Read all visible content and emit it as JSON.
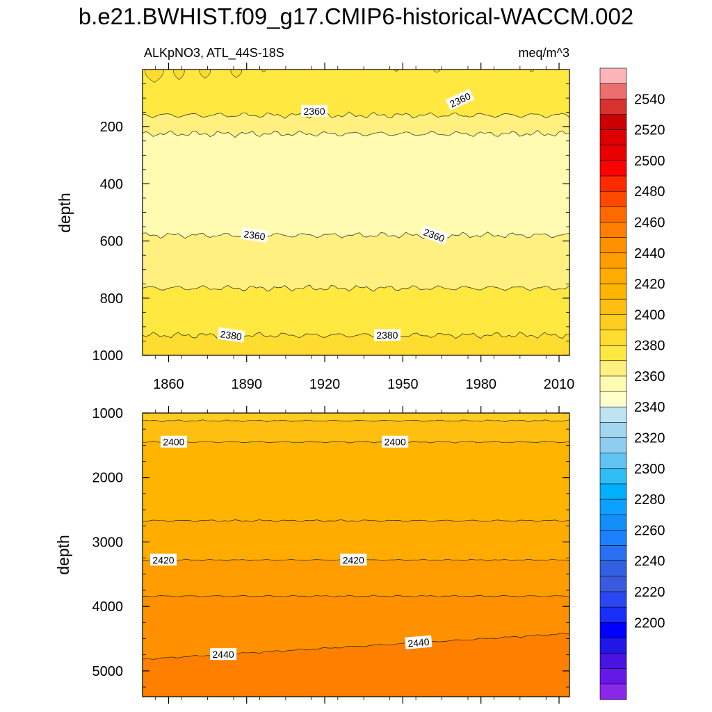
{
  "title": "b.e21.BWHIST.f09_g17.CMIP6-historical-WACCM.002",
  "chart_data": [
    {
      "type": "contour",
      "panel": "upper",
      "left_label": "ALKpNO3, ATL_44S-18S",
      "right_label": "meq/m^3",
      "ylabel": "depth",
      "xlabel": "",
      "x_range": [
        1850,
        2014
      ],
      "y_range": [
        0,
        1000
      ],
      "y_reversed": true,
      "xticks": [
        "1860",
        "1890",
        "1920",
        "1950",
        "1980",
        "2010"
      ],
      "yticks": [
        "200",
        "400",
        "600",
        "800",
        "1000"
      ],
      "contour_line_labels": [
        "2360",
        "2360",
        "2360",
        "2360",
        "2380",
        "2380"
      ],
      "bands": [
        {
          "level_range": [
            2370,
            2380
          ],
          "depth_top": 0,
          "depth_bottom": 160
        },
        {
          "level_range": [
            2360,
            2370
          ],
          "depth_top": 160,
          "depth_bottom": 225
        },
        {
          "level_range": [
            2350,
            2360
          ],
          "depth_top": 225,
          "depth_bottom": 580
        },
        {
          "level_range": [
            2360,
            2370
          ],
          "depth_top": 580,
          "depth_bottom": 765
        },
        {
          "level_range": [
            2370,
            2380
          ],
          "depth_top": 765,
          "depth_bottom": 930
        },
        {
          "level_range": [
            2380,
            2390
          ],
          "depth_top": 930,
          "depth_bottom": 1000
        }
      ]
    },
    {
      "type": "contour",
      "panel": "lower",
      "ylabel": "depth",
      "xlabel": "",
      "x_range": [
        1850,
        2014
      ],
      "y_range": [
        1000,
        5400
      ],
      "y_reversed": true,
      "yticks": [
        "1000",
        "2000",
        "3000",
        "4000",
        "5000"
      ],
      "contour_line_labels": [
        "2400",
        "2400",
        "2420",
        "2420",
        "2440",
        "2440"
      ],
      "bands": [
        {
          "level_range": [
            2390,
            2400
          ],
          "depth_top": 1000,
          "depth_bottom": 1120
        },
        {
          "level_range": [
            2400,
            2410
          ],
          "depth_top": 1120,
          "depth_bottom": 1450
        },
        {
          "level_range": [
            2410,
            2420
          ],
          "depth_top": 1450,
          "depth_bottom": 2670
        },
        {
          "level_range": [
            2420,
            2430
          ],
          "depth_top": 2670,
          "depth_bottom": 3280
        },
        {
          "level_range": [
            2430,
            2440
          ],
          "depth_top": 3280,
          "depth_bottom": 3840
        },
        {
          "level_range": [
            2440,
            2450
          ],
          "depth_top": 3840,
          "depth_bottom": 4700
        },
        {
          "level_range": [
            2450,
            2460
          ],
          "depth_top": 4700,
          "depth_bottom": 5400
        }
      ]
    }
  ],
  "colorbar": {
    "labels": [
      "2540",
      "2520",
      "2500",
      "2480",
      "2460",
      "2440",
      "2420",
      "2400",
      "2380",
      "2360",
      "2340",
      "2320",
      "2300",
      "2280",
      "2260",
      "2240",
      "2220",
      "2200"
    ],
    "colors_top_to_bottom": [
      "#fdb4b8",
      "#ec6e6e",
      "#d93030",
      "#cc0000",
      "#dd0000",
      "#e80000",
      "#ff0000",
      "#ff2a00",
      "#ff4800",
      "#ff6a00",
      "#ff7f00",
      "#ff9000",
      "#ff9c00",
      "#ffab00",
      "#ffb500",
      "#ffbf10",
      "#ffcc20",
      "#ffdc30",
      "#ffe840",
      "#fff080",
      "#fffbb0",
      "#ffffcc",
      "#bee3f3",
      "#a3d7ef",
      "#8dcdef",
      "#60c3f4",
      "#2fbdf8",
      "#00b0f8",
      "#0ea0ff",
      "#148ef8",
      "#1c80ff",
      "#2870f0",
      "#3160e0",
      "#3a5ae0",
      "#2c47f0",
      "#1a2ef8",
      "#0000ff",
      "#2216e6",
      "#4a14e0",
      "#6618e8",
      "#8a28ea"
    ]
  }
}
